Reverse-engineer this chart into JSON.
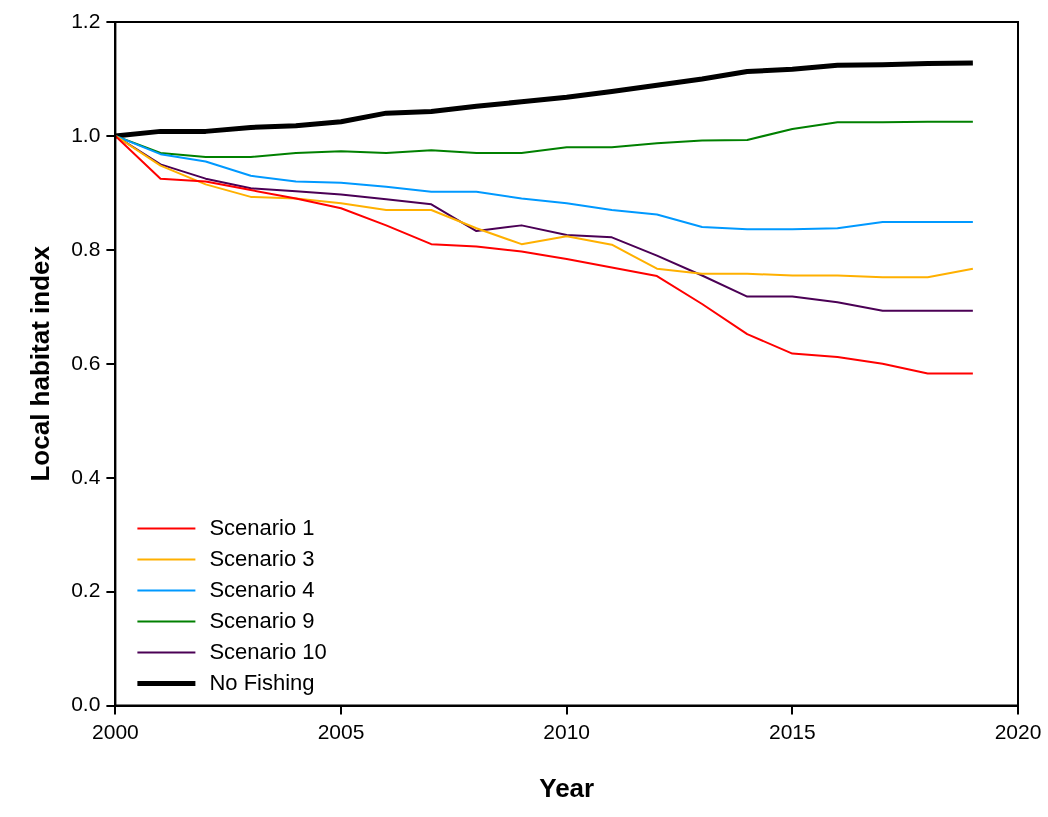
{
  "chart_data": {
    "type": "line",
    "xlabel": "Year",
    "ylabel": "Local habitat index",
    "x": [
      2000,
      2001,
      2002,
      2003,
      2004,
      2005,
      2006,
      2007,
      2008,
      2009,
      2010,
      2011,
      2012,
      2013,
      2014,
      2015,
      2016,
      2017,
      2018,
      2019
    ],
    "series": [
      {
        "name": "Scenario 1",
        "color": "#ff0000",
        "values": [
          1.0,
          0.925,
          0.92,
          0.905,
          0.89,
          0.873,
          0.843,
          0.81,
          0.806,
          0.797,
          0.784,
          0.769,
          0.754,
          0.705,
          0.652,
          0.618,
          0.612,
          0.6,
          0.583,
          0.583
        ]
      },
      {
        "name": "Scenario 3",
        "color": "#ffb000",
        "values": [
          1.0,
          0.948,
          0.915,
          0.893,
          0.89,
          0.882,
          0.87,
          0.87,
          0.838,
          0.81,
          0.824,
          0.809,
          0.767,
          0.758,
          0.758,
          0.755,
          0.755,
          0.752,
          0.752,
          0.767
        ]
      },
      {
        "name": "Scenario 4",
        "color": "#0099ff",
        "values": [
          1.0,
          0.968,
          0.955,
          0.93,
          0.92,
          0.918,
          0.911,
          0.902,
          0.902,
          0.89,
          0.882,
          0.87,
          0.862,
          0.84,
          0.836,
          0.836,
          0.838,
          0.849,
          0.849,
          0.849
        ]
      },
      {
        "name": "Scenario 9",
        "color": "#008000",
        "values": [
          1.0,
          0.97,
          0.963,
          0.963,
          0.97,
          0.973,
          0.97,
          0.975,
          0.97,
          0.97,
          0.98,
          0.98,
          0.987,
          0.992,
          0.993,
          1.012,
          1.024,
          1.024,
          1.025,
          1.025
        ]
      },
      {
        "name": "Scenario 10",
        "color": "#4b0055",
        "values": [
          1.0,
          0.95,
          0.925,
          0.908,
          0.903,
          0.897,
          0.889,
          0.88,
          0.833,
          0.843,
          0.826,
          0.822,
          0.79,
          0.755,
          0.718,
          0.718,
          0.708,
          0.693,
          0.693,
          0.693
        ]
      },
      {
        "name": "No Fishing",
        "color": "#000000",
        "values": [
          1.0,
          1.008,
          1.008,
          1.015,
          1.018,
          1.025,
          1.04,
          1.043,
          1.052,
          1.06,
          1.068,
          1.078,
          1.089,
          1.1,
          1.113,
          1.117,
          1.124,
          1.125,
          1.127,
          1.128
        ]
      }
    ],
    "xlim": [
      2000,
      2020
    ],
    "xticks": [
      2000,
      2005,
      2010,
      2015,
      2020
    ],
    "ylim": [
      0,
      1.2
    ],
    "yticks": [
      {
        "value": 0,
        "label": "0.0"
      },
      {
        "value": 0.2,
        "label": "0.2"
      },
      {
        "value": 0.4,
        "label": "0.4"
      },
      {
        "value": 0.6,
        "label": "0.6"
      },
      {
        "value": 0.8,
        "label": "0.8"
      },
      {
        "value": 1.0,
        "label": "1.0"
      },
      {
        "value": 1.2,
        "label": "1.2"
      }
    ],
    "grid": false,
    "legend": "bottom left",
    "marker": "none",
    "line_style": "solid"
  }
}
